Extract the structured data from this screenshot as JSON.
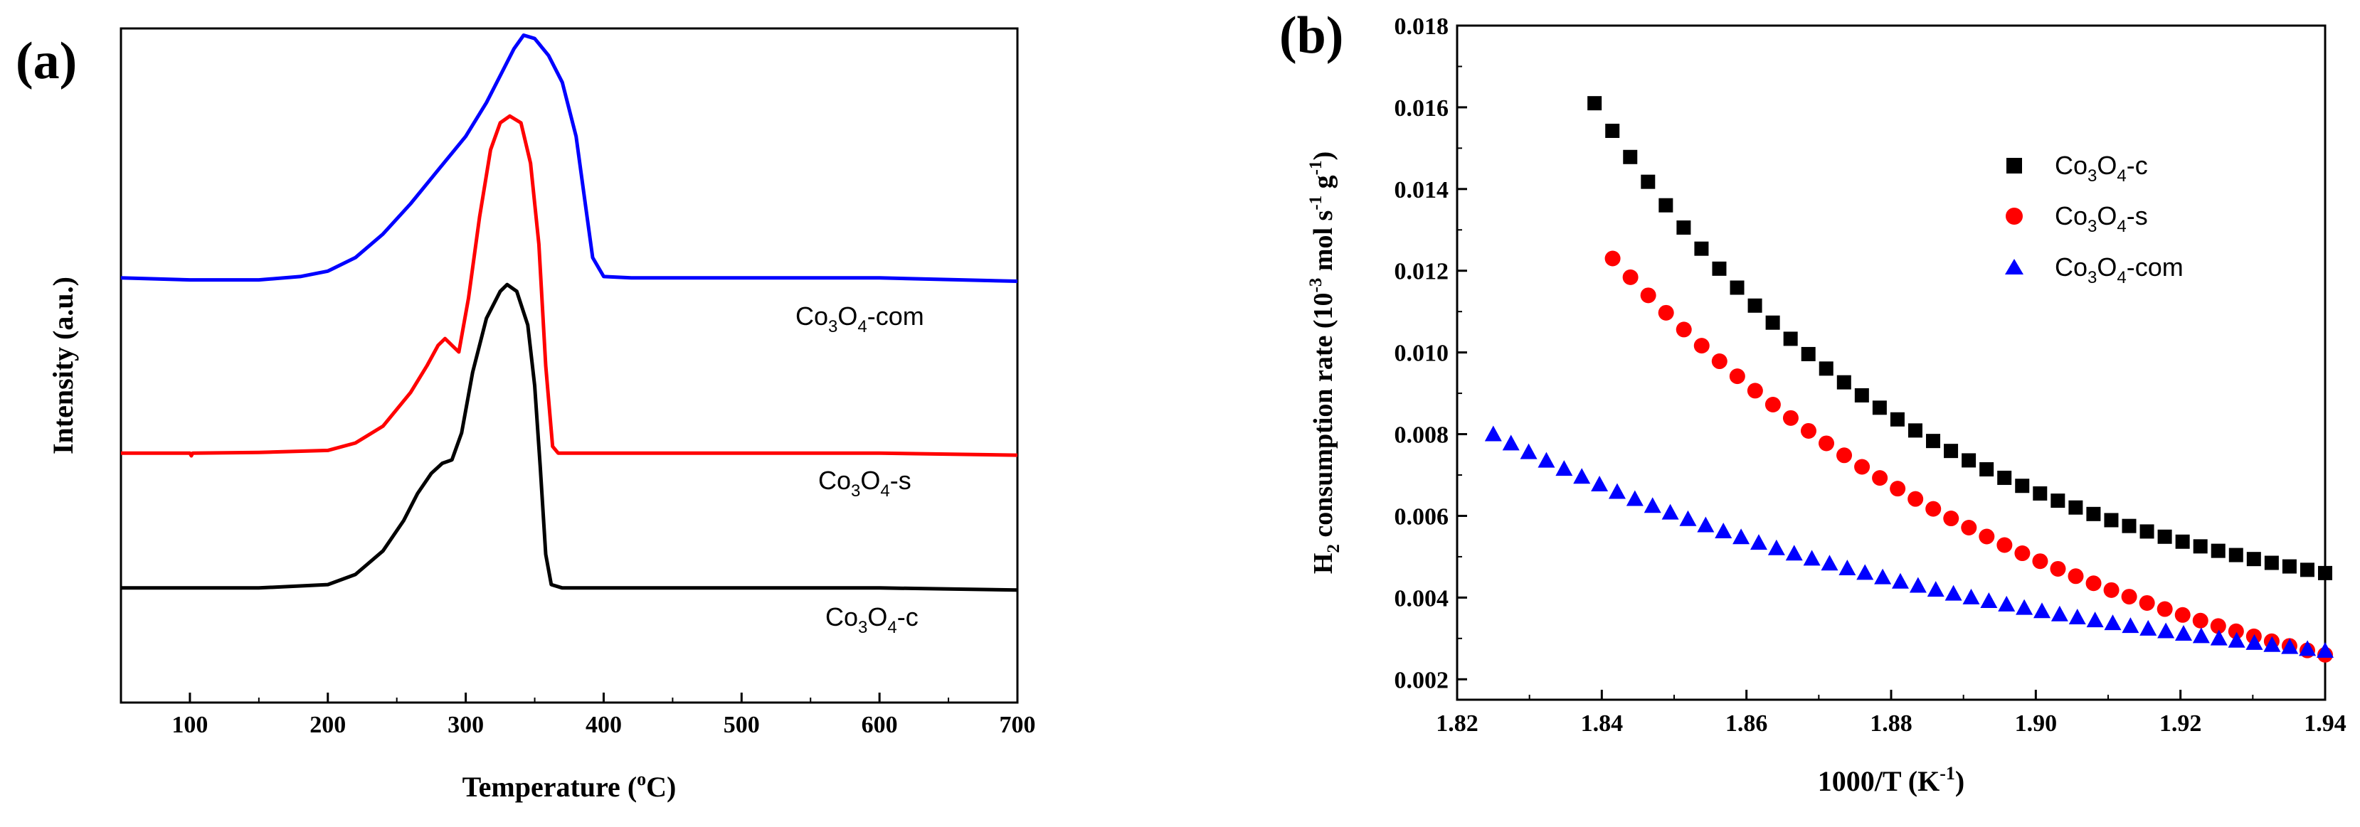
{
  "chart_data": [
    {
      "panel": "(a)",
      "type": "line",
      "xlabel": "Temperature (°C)",
      "xlabel_main": "Temperature (",
      "xlabel_sup": "o",
      "xlabel_end": "C)",
      "ylabel": "Intensity (a.u.)",
      "xlim": [
        50,
        700
      ],
      "xticks": [
        100,
        200,
        300,
        400,
        500,
        600,
        700
      ],
      "yticks_shown": false,
      "series": [
        {
          "name": "Co3O4-com",
          "label_parts": [
            "Co",
            "3",
            "O",
            "4",
            "-com"
          ],
          "color": "#0000ff",
          "points": [
            [
              50,
              0.63
            ],
            [
              100,
              0.627
            ],
            [
              150,
              0.627
            ],
            [
              180,
              0.632
            ],
            [
              200,
              0.64
            ],
            [
              220,
              0.66
            ],
            [
              240,
              0.695
            ],
            [
              260,
              0.74
            ],
            [
              280,
              0.79
            ],
            [
              300,
              0.84
            ],
            [
              315,
              0.89
            ],
            [
              325,
              0.93
            ],
            [
              335,
              0.97
            ],
            [
              342,
              0.99
            ],
            [
              350,
              0.985
            ],
            [
              360,
              0.96
            ],
            [
              370,
              0.92
            ],
            [
              380,
              0.84
            ],
            [
              388,
              0.72
            ],
            [
              392,
              0.66
            ],
            [
              400,
              0.632
            ],
            [
              420,
              0.63
            ],
            [
              500,
              0.63
            ],
            [
              600,
              0.63
            ],
            [
              700,
              0.625
            ]
          ]
        },
        {
          "name": "Co3O4-s",
          "label_parts": [
            "Co",
            "3",
            "O",
            "4",
            "-s"
          ],
          "color": "#ff0000",
          "points": [
            [
              50,
              0.37
            ],
            [
              100,
              0.37
            ],
            [
              101,
              0.366
            ],
            [
              102,
              0.37
            ],
            [
              150,
              0.371
            ],
            [
              200,
              0.374
            ],
            [
              220,
              0.385
            ],
            [
              240,
              0.41
            ],
            [
              260,
              0.46
            ],
            [
              272,
              0.5
            ],
            [
              280,
              0.53
            ],
            [
              285,
              0.54
            ],
            [
              290,
              0.53
            ],
            [
              295,
              0.52
            ],
            [
              302,
              0.6
            ],
            [
              310,
              0.72
            ],
            [
              318,
              0.82
            ],
            [
              325,
              0.86
            ],
            [
              332,
              0.87
            ],
            [
              340,
              0.86
            ],
            [
              347,
              0.8
            ],
            [
              353,
              0.68
            ],
            [
              358,
              0.5
            ],
            [
              363,
              0.38
            ],
            [
              367,
              0.37
            ],
            [
              400,
              0.37
            ],
            [
              500,
              0.37
            ],
            [
              600,
              0.37
            ],
            [
              700,
              0.367
            ]
          ]
        },
        {
          "name": "Co3O4-c",
          "label_parts": [
            "Co",
            "3",
            "O",
            "4",
            "-c"
          ],
          "color": "#000000",
          "points": [
            [
              50,
              0.17
            ],
            [
              100,
              0.17
            ],
            [
              150,
              0.17
            ],
            [
              200,
              0.175
            ],
            [
              220,
              0.19
            ],
            [
              240,
              0.225
            ],
            [
              255,
              0.27
            ],
            [
              265,
              0.31
            ],
            [
              275,
              0.34
            ],
            [
              283,
              0.355
            ],
            [
              290,
              0.36
            ],
            [
              297,
              0.4
            ],
            [
              305,
              0.49
            ],
            [
              315,
              0.57
            ],
            [
              325,
              0.61
            ],
            [
              330,
              0.62
            ],
            [
              337,
              0.61
            ],
            [
              345,
              0.56
            ],
            [
              350,
              0.47
            ],
            [
              354,
              0.35
            ],
            [
              358,
              0.22
            ],
            [
              362,
              0.175
            ],
            [
              370,
              0.17
            ],
            [
              400,
              0.17
            ],
            [
              500,
              0.17
            ],
            [
              600,
              0.17
            ],
            [
              700,
              0.167
            ]
          ]
        }
      ]
    },
    {
      "panel": "(b)",
      "type": "scatter",
      "xlabel": "1000/T (K-1)",
      "xlabel_main": "1000/T (K",
      "xlabel_sup": "-1",
      "xlabel_end": ")",
      "ylabel": "H2 consumption rate (10-3 mol s-1 g-1)",
      "ylabel_parts": {
        "h": "H",
        "h_sub": "2",
        "mid": " consumption rate (10",
        "exp1": "-3",
        "mid2": " mol s",
        "exp2": "-1",
        "mid3": " g",
        "exp3": "-1",
        "end": ")"
      },
      "xlim": [
        1.82,
        1.94
      ],
      "ylim": [
        0.0015,
        0.018
      ],
      "xticks": [
        "1.82",
        "1.84",
        "1.86",
        "1.88",
        "1.90",
        "1.92",
        "1.94"
      ],
      "yticks": [
        "0.002",
        "0.004",
        "0.006",
        "0.008",
        "0.010",
        "0.012",
        "0.014",
        "0.016",
        "0.018"
      ],
      "legend_position": "top-right",
      "series": [
        {
          "name": "Co3O4-c",
          "label_parts": [
            "Co",
            "3",
            "O",
            "4",
            "-c"
          ],
          "marker": "square",
          "color": "#000000",
          "x_start": 1.839,
          "x_end": 1.94,
          "count": 42,
          "y_start": 0.0161,
          "y_end": 0.0046,
          "curvature": 2.2
        },
        {
          "name": "Co3O4-s",
          "label_parts": [
            "Co",
            "3",
            "O",
            "4",
            "-s"
          ],
          "marker": "circle",
          "color": "#ff0000",
          "x_start": 1.8415,
          "x_end": 1.94,
          "count": 41,
          "y_start": 0.0123,
          "y_end": 0.0026,
          "curvature": 1.5
        },
        {
          "name": "Co3O4-com",
          "label_parts": [
            "Co",
            "3",
            "O",
            "4",
            "-com"
          ],
          "marker": "triangle",
          "color": "#0000ff",
          "x_start": 1.825,
          "x_end": 1.94,
          "count": 48,
          "y_start": 0.008,
          "y_end": 0.0027,
          "curvature": 1.6
        }
      ]
    }
  ]
}
